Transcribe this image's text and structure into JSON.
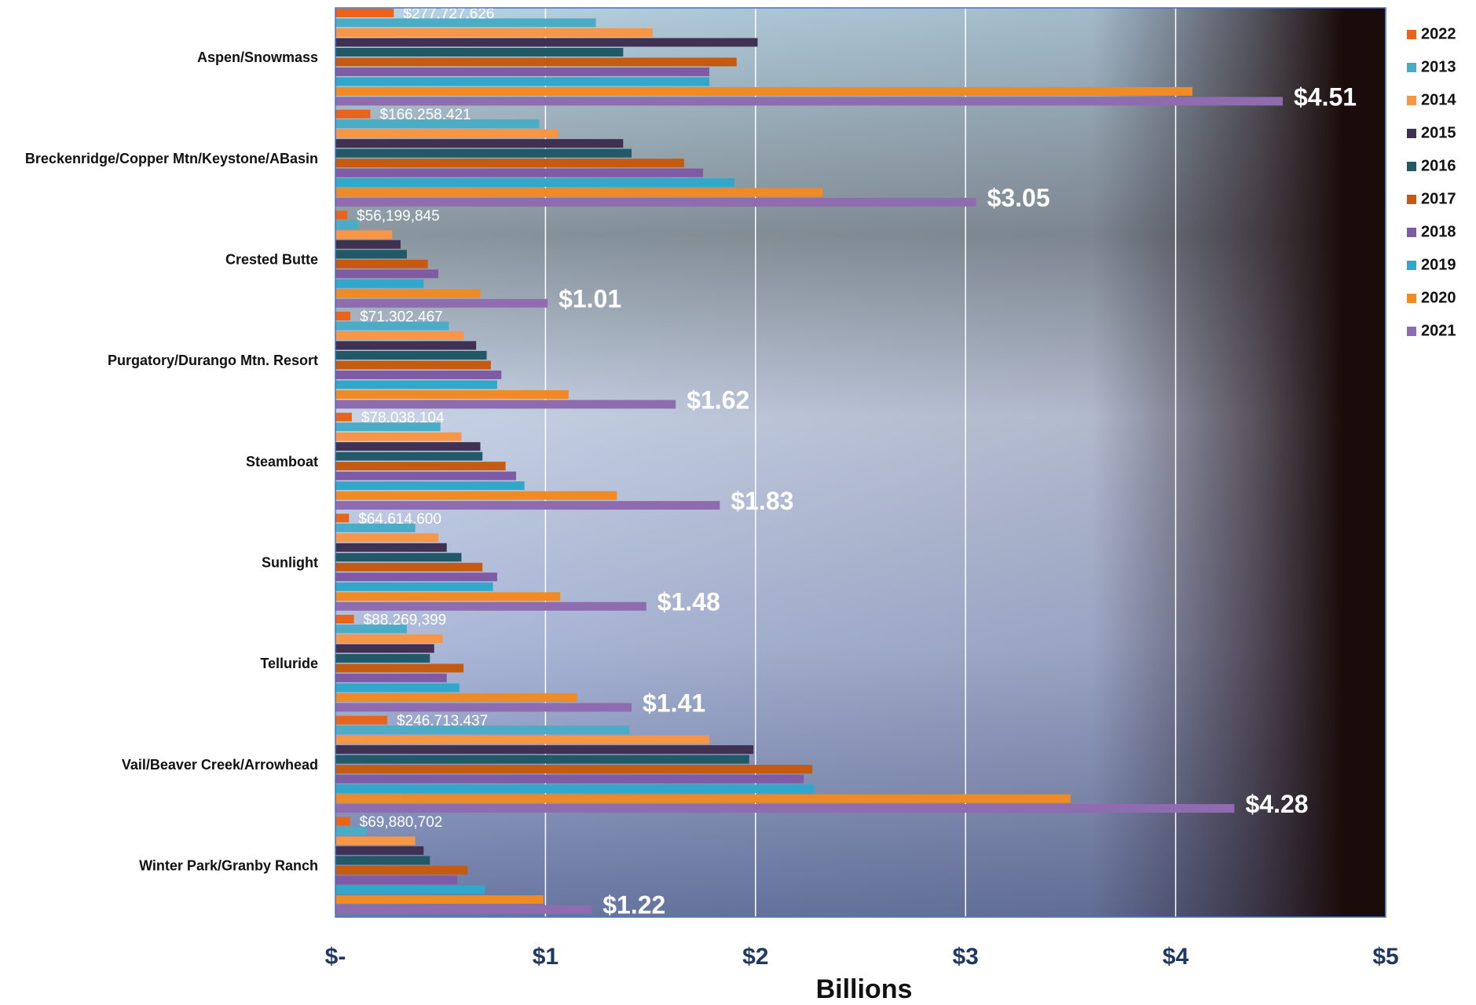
{
  "chart_data": {
    "type": "hbar",
    "categories": [
      "Aspen/Snowmass",
      "Breckenridge/Copper Mtn/Keystone/ABasin",
      "Crested Butte",
      "Purgatory/Durango Mtn. Resort",
      "Steamboat",
      "Sunlight",
      "Telluride",
      "Vail/Beaver Creek/Arrowhead",
      "Winter Park/Granby Ranch"
    ],
    "series": [
      {
        "name": "2022",
        "color": "#e8641b",
        "values": [
          0.277727626,
          0.166258421,
          0.056199845,
          0.071302467,
          0.078038104,
          0.0646146,
          0.088269399,
          0.246713437,
          0.069880702
        ],
        "value_labels": [
          "$277,727,626",
          "$166,258,421",
          "$56,199,845",
          "$71,302,467",
          "$78,038,104",
          "$64,614,600",
          "$88,269,399",
          "$246,713,437",
          "$69,880,702"
        ]
      },
      {
        "name": "2013",
        "color": "#4bacc6",
        "values": [
          1.24,
          0.97,
          0.11,
          0.54,
          0.5,
          0.38,
          0.34,
          1.4,
          0.15
        ]
      },
      {
        "name": "2014",
        "color": "#f79646",
        "values": [
          1.51,
          1.06,
          0.27,
          0.61,
          0.6,
          0.49,
          0.51,
          1.78,
          0.38
        ]
      },
      {
        "name": "2015",
        "color": "#403152",
        "values": [
          2.01,
          1.37,
          0.31,
          0.67,
          0.69,
          0.53,
          0.47,
          1.99,
          0.42
        ]
      },
      {
        "name": "2016",
        "color": "#215968",
        "values": [
          1.37,
          1.41,
          0.34,
          0.72,
          0.7,
          0.6,
          0.45,
          1.97,
          0.45
        ]
      },
      {
        "name": "2017",
        "color": "#c55a11",
        "values": [
          1.91,
          1.66,
          0.44,
          0.74,
          0.81,
          0.7,
          0.61,
          2.27,
          0.63
        ]
      },
      {
        "name": "2018",
        "color": "#7f5ba6",
        "values": [
          1.78,
          1.75,
          0.49,
          0.79,
          0.86,
          0.77,
          0.53,
          2.23,
          0.58
        ]
      },
      {
        "name": "2019",
        "color": "#31a8c9",
        "values": [
          1.78,
          1.9,
          0.42,
          0.77,
          0.9,
          0.75,
          0.59,
          2.28,
          0.71
        ]
      },
      {
        "name": "2020",
        "color": "#f08a24",
        "values": [
          4.08,
          2.32,
          0.69,
          1.11,
          1.34,
          1.07,
          1.15,
          3.5,
          0.99
        ]
      },
      {
        "name": "2021",
        "color": "#8f6bb0",
        "values": [
          4.51,
          3.05,
          1.01,
          1.62,
          1.83,
          1.48,
          1.41,
          4.28,
          1.22
        ],
        "value_labels": [
          "$4.51",
          "$3.05",
          "$1.01",
          "$1.62",
          "$1.83",
          "$1.48",
          "$1.41",
          "$4.28",
          "$1.22"
        ]
      }
    ],
    "xlabel": "Billions",
    "xlim": [
      0,
      5
    ],
    "xticks": [
      {
        "value": 0,
        "label": "$-"
      },
      {
        "value": 1,
        "label": "$1"
      },
      {
        "value": 2,
        "label": "$2"
      },
      {
        "value": 3,
        "label": "$3"
      },
      {
        "value": 4,
        "label": "$4"
      },
      {
        "value": 5,
        "label": "$5"
      }
    ],
    "grid": true,
    "legend": "right"
  }
}
